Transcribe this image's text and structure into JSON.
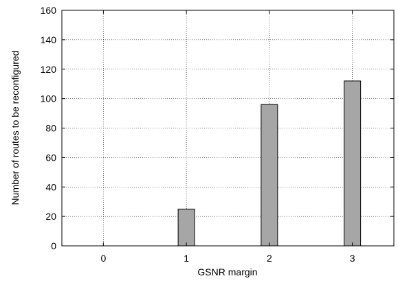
{
  "chart_data": {
    "type": "bar",
    "title": "",
    "xlabel": "GSNR margin",
    "ylabel": "Number of routes to be reconfigured",
    "categories": [
      "0",
      "1",
      "2",
      "3"
    ],
    "values": [
      0,
      25,
      96,
      112
    ],
    "ylim": [
      0,
      160
    ],
    "yticks": [
      0,
      20,
      40,
      60,
      80,
      100,
      120,
      140,
      160
    ],
    "grid": true,
    "legend": "none",
    "bar_color": "#a6a6a6"
  }
}
